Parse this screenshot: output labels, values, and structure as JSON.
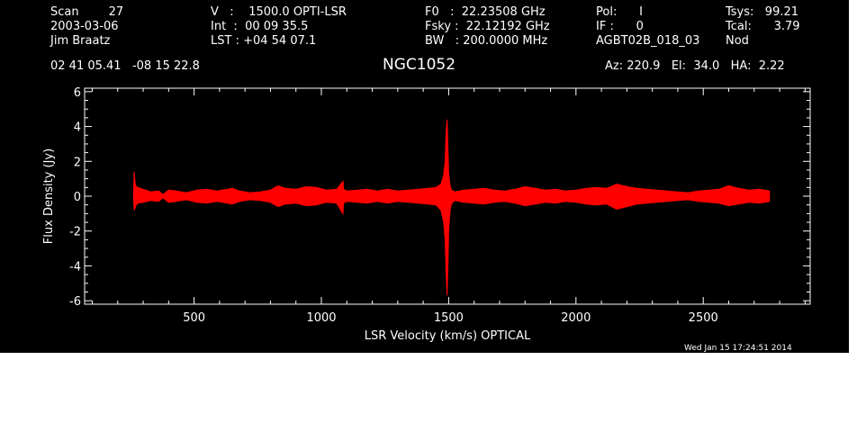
{
  "header": {
    "col1": [
      "Scan        27",
      "2003-03-06",
      "Jim Braatz"
    ],
    "col2": [
      "V   :    1500.0 OPTI-LSR",
      "Int  :  00 09 35.5",
      "LST : +04 54 07.1"
    ],
    "col3": [
      "F0   :  22.23508 GHz",
      "Fsky :  22.12192 GHz",
      "BW   : 200.0000 MHz"
    ],
    "col4": [
      "Pol:      I",
      "IF :      0",
      "AGBT02B_018_03"
    ],
    "col5": [
      "Tsys:   99.21",
      "Tcal:      3.79",
      "Nod"
    ],
    "coords": "02 41 05.41   -08 15 22.8",
    "source": "NGC1052",
    "pointing": "Az: 220.9   El:  34.0   HA:  2.22"
  },
  "timestamp": "Wed Jan 15 17:24:51 2014",
  "colors": {
    "background": "#000000",
    "axes": "#ffffff",
    "trace": "#ff0000"
  },
  "chart_data": {
    "type": "line",
    "title": "NGC1052",
    "xlabel": "LSR Velocity (km/s) OPTICAL",
    "ylabel": "Flux Density (Jy)",
    "xlim": [
      70,
      2920
    ],
    "ylim": [
      -6.2,
      6.2
    ],
    "xticks": [
      500,
      1000,
      1500,
      2000,
      2500
    ],
    "yticks": [
      -6,
      -4,
      -2,
      0,
      2,
      4,
      6
    ],
    "grid": false,
    "series": [
      {
        "color": "#ff0000",
        "x": [
          262,
          265,
          268,
          272,
          280,
          300,
          330,
          360,
          378,
          400,
          430,
          470,
          510,
          550,
          590,
          630,
          650,
          680,
          720,
          760,
          800,
          830,
          860,
          900,
          940,
          980,
          1020,
          1060,
          1085,
          1087,
          1100,
          1140,
          1180,
          1220,
          1260,
          1300,
          1340,
          1380,
          1420,
          1450,
          1470,
          1480,
          1486,
          1490,
          1494,
          1497,
          1500,
          1503,
          1506,
          1510,
          1515,
          1525,
          1540,
          1560,
          1600,
          1640,
          1680,
          1720,
          1760,
          1800,
          1840,
          1880,
          1920,
          1960,
          2000,
          2040,
          2080,
          2120,
          2160,
          2200,
          2240,
          2280,
          2320,
          2360,
          2400,
          2440,
          2480,
          2520,
          2560,
          2600,
          2640,
          2680,
          2720,
          2760
        ],
        "ymax": [
          0.2,
          1.4,
          0.8,
          0.55,
          0.5,
          0.4,
          0.25,
          0.3,
          0.1,
          0.35,
          0.3,
          0.2,
          0.35,
          0.4,
          0.3,
          0.4,
          0.45,
          0.3,
          0.2,
          0.25,
          0.35,
          0.6,
          0.45,
          0.4,
          0.55,
          0.5,
          0.35,
          0.4,
          0.85,
          0.4,
          0.3,
          0.35,
          0.4,
          0.3,
          0.4,
          0.3,
          0.35,
          0.4,
          0.45,
          0.5,
          0.7,
          1.2,
          2.0,
          3.8,
          4.4,
          2.8,
          1.3,
          0.9,
          0.6,
          0.4,
          0.3,
          0.25,
          0.3,
          0.35,
          0.4,
          0.45,
          0.35,
          0.3,
          0.4,
          0.55,
          0.45,
          0.35,
          0.4,
          0.3,
          0.35,
          0.45,
          0.5,
          0.45,
          0.7,
          0.55,
          0.45,
          0.4,
          0.35,
          0.3,
          0.25,
          0.2,
          0.3,
          0.35,
          0.4,
          0.6,
          0.45,
          0.35,
          0.4,
          0.3
        ],
        "ymin": [
          -0.2,
          -0.8,
          -0.7,
          -0.5,
          -0.4,
          -0.35,
          -0.25,
          -0.3,
          -0.1,
          -0.35,
          -0.3,
          -0.2,
          -0.35,
          -0.4,
          -0.3,
          -0.4,
          -0.45,
          -0.3,
          -0.2,
          -0.25,
          -0.35,
          -0.6,
          -0.45,
          -0.4,
          -0.55,
          -0.5,
          -0.35,
          -0.4,
          -1.0,
          -0.4,
          -0.3,
          -0.35,
          -0.4,
          -0.3,
          -0.4,
          -0.3,
          -0.35,
          -0.4,
          -0.45,
          -0.5,
          -0.8,
          -1.5,
          -2.5,
          -4.5,
          -5.7,
          -4.0,
          -2.0,
          -1.3,
          -0.8,
          -0.5,
          -0.35,
          -0.25,
          -0.3,
          -0.35,
          -0.4,
          -0.45,
          -0.35,
          -0.3,
          -0.4,
          -0.55,
          -0.45,
          -0.35,
          -0.4,
          -0.3,
          -0.35,
          -0.45,
          -0.5,
          -0.45,
          -0.75,
          -0.6,
          -0.45,
          -0.4,
          -0.35,
          -0.3,
          -0.25,
          -0.2,
          -0.3,
          -0.35,
          -0.4,
          -0.55,
          -0.45,
          -0.35,
          -0.4,
          -0.3
        ]
      }
    ]
  }
}
